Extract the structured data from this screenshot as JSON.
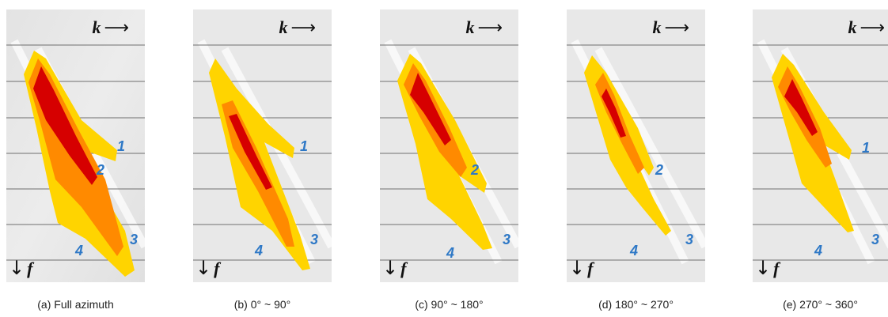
{
  "axis_labels": {
    "k": "k",
    "f": "f"
  },
  "colors": {
    "energy_peak": "#d40000",
    "energy_mid": "#ff7a00",
    "energy_low": "#ffd400",
    "label_blue": "#2e78c6",
    "grid": "#6f6f6f"
  },
  "panels": [
    {
      "caption": "(a) Full azimuth",
      "labels": [
        "1",
        "2",
        "3",
        "4"
      ]
    },
    {
      "caption": "(b) 0° ~ 90°",
      "labels": [
        "1",
        "2",
        "3",
        "4"
      ]
    },
    {
      "caption": "(c) 90° ~ 180°",
      "labels": [
        "1",
        "2",
        "3",
        "4"
      ]
    },
    {
      "caption": "(d) 180° ~ 270°",
      "labels": [
        "1",
        "2",
        "3",
        "4"
      ]
    },
    {
      "caption": "(e) 270° ~ 360°",
      "labels": [
        "1",
        "2",
        "3",
        "4"
      ]
    }
  ]
}
